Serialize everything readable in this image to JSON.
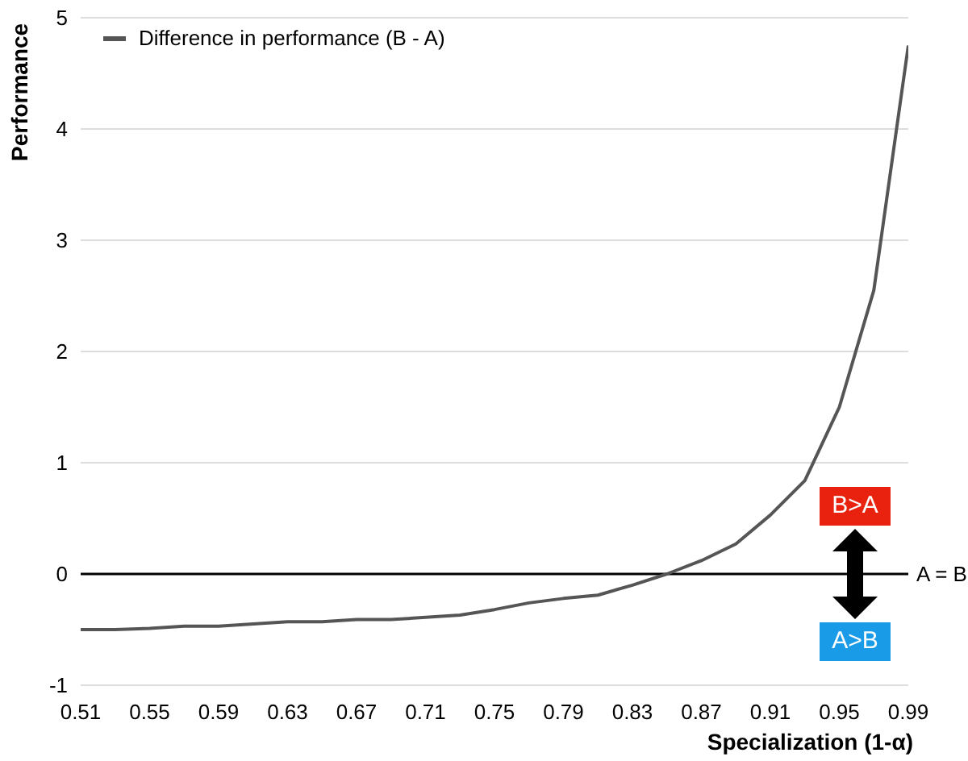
{
  "chart_data": {
    "type": "line",
    "xlabel": "Specialization (1-α)",
    "ylabel": "Performance",
    "categories": [
      "0.51",
      null,
      "0.55",
      null,
      "0.59",
      null,
      "0.63",
      null,
      "0.67",
      null,
      "0.71",
      null,
      "0.75",
      null,
      "0.79",
      null,
      "0.83",
      null,
      "0.87",
      null,
      "0.91",
      null,
      "0.95",
      null,
      "0.99"
    ],
    "series": [
      {
        "name": "Difference in performance (B - A)",
        "color": "#555555",
        "values": [
          -0.5,
          -0.5,
          -0.49,
          -0.47,
          -0.47,
          -0.45,
          -0.43,
          -0.43,
          -0.41,
          -0.41,
          -0.39,
          -0.37,
          -0.32,
          -0.26,
          -0.22,
          -0.19,
          -0.1,
          0.0,
          0.12,
          0.27,
          0.53,
          0.84,
          1.5,
          2.55,
          4.75
        ]
      }
    ],
    "ylim": [
      -1,
      5
    ],
    "yticks": [
      -1,
      0,
      1,
      2,
      3,
      4,
      5
    ],
    "grid": "y",
    "legend": "top left",
    "marker": "none",
    "line_style": "solid",
    "ref_lines": [
      {
        "axis": "y",
        "value": 0,
        "label": "A = B",
        "color": "#000000"
      }
    ],
    "annotations": [
      "B>A",
      "A>B"
    ]
  }
}
